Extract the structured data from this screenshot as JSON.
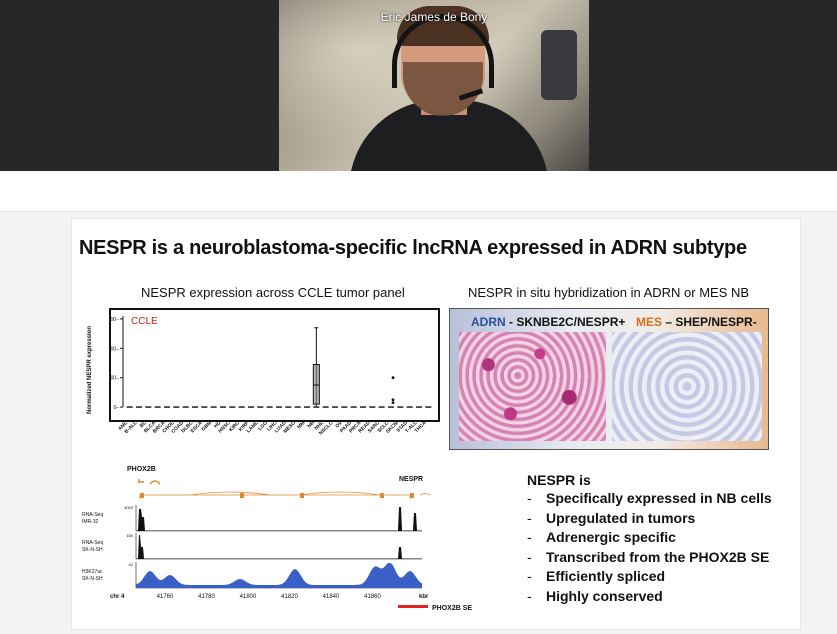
{
  "meeting": {
    "participant_name": "Eric James de Bony"
  },
  "slide": {
    "title": "NESPR is a neuroblastoma-specific lncRNA expressed in ADRN subtype",
    "left_panel_title": "NESPR expression across CCLE tumor panel",
    "right_panel_title": "NESPR in situ hybridization in ADRN or MES NB",
    "ish": {
      "adrn_prefix": "ADRN",
      "adrn_rest": " - SKNBE2C/NESPR+",
      "mes_prefix": "MES",
      "mes_rest": " – SHEP/NESPR-",
      "colors": {
        "adrn": "#2a4f9a",
        "mes": "#d2701e"
      }
    },
    "bullets_heading": "NESPR is",
    "bullets": [
      "Specifically expressed in NB cells",
      "Upregulated  in tumors",
      "Adrenergic specific",
      "Transcribed from the PHOX2B SE",
      "Efficiently spliced",
      "Highly conserved"
    ],
    "tracks": {
      "gene_left": "PHOX2B",
      "gene_right": "NESPR",
      "rows": [
        {
          "label1": "RNA-Seq",
          "label2": "IMR-32",
          "max": "4000"
        },
        {
          "label1": "RNA-Seq",
          "label2": "SK-N-SH",
          "max": "160"
        },
        {
          "label1": "H3K27ac",
          "label2": "SK-N-SH",
          "max": "42"
        }
      ],
      "chrom": "chr 4",
      "positions": [
        "41760",
        "41780",
        "41800",
        "41820",
        "41840",
        "41860"
      ],
      "unit": "kbr",
      "se_label": "PHOX2B SE",
      "colors": {
        "gene": "#e0892f",
        "rnaseq": "#111111",
        "chip": "#3a5fc6",
        "se": "#e02424"
      }
    }
  },
  "chart_data": {
    "type": "box",
    "title": "NESPR expression across CCLE tumor panel",
    "legend_label": "CCLE",
    "ylabel": "Normalized NESPR expression",
    "yticks": [
      0,
      100,
      200,
      300
    ],
    "ylim": [
      -10,
      310
    ],
    "categories": [
      "AML",
      "B-ALL",
      "BL",
      "BLCA",
      "BRCA",
      "CHOL",
      "COAD",
      "DLBC",
      "ESCA",
      "GBM",
      "HD",
      "HNSC",
      "KIRC",
      "KIRP",
      "LAML",
      "LGG",
      "LIHC",
      "LUAD",
      "MESO",
      "MM",
      "NB",
      "NHL",
      "NSCLC",
      "OV",
      "PAAD",
      "PRCA",
      "READ",
      "SARC",
      "SCLC",
      "SKCM",
      "STAD",
      "T-ALL",
      "THCA"
    ],
    "nb": {
      "q1": 10,
      "median": 75,
      "q3": 145,
      "whisker_low": 3,
      "whisker_high": 270
    },
    "sclc_outliers": [
      100,
      25,
      15
    ],
    "baseline": 0
  }
}
